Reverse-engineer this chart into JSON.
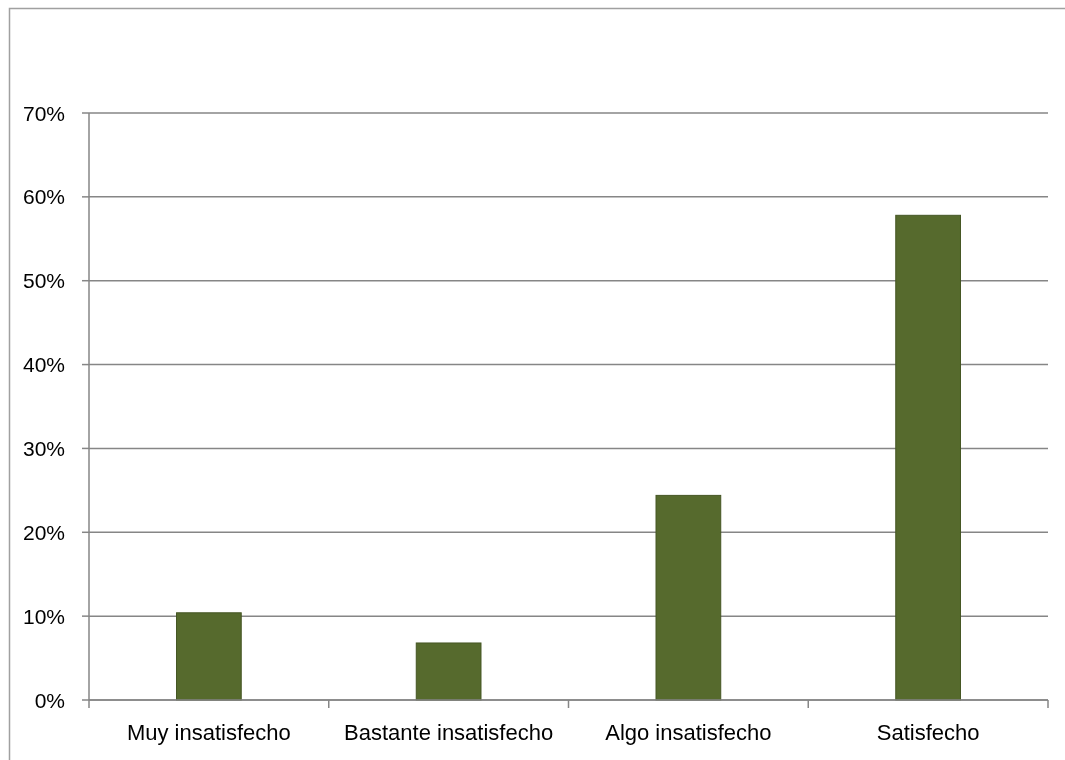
{
  "chart_data": {
    "type": "bar",
    "categories": [
      "Muy insatisfecho",
      "Bastante insatisfecho",
      "Algo insatisfecho",
      "Satisfecho"
    ],
    "values": [
      10.4,
      6.8,
      24.4,
      57.8
    ],
    "color": "#566a2d",
    "ylim": [
      0,
      70
    ],
    "yticks": [
      {
        "value": 0,
        "label": "0%"
      },
      {
        "value": 10,
        "label": "10%"
      },
      {
        "value": 20,
        "label": "20%"
      },
      {
        "value": 30,
        "label": "30%"
      },
      {
        "value": 40,
        "label": "40%"
      },
      {
        "value": 50,
        "label": "50%"
      },
      {
        "value": 60,
        "label": "60%"
      },
      {
        "value": 70,
        "label": "70%"
      }
    ],
    "grid": "y"
  }
}
